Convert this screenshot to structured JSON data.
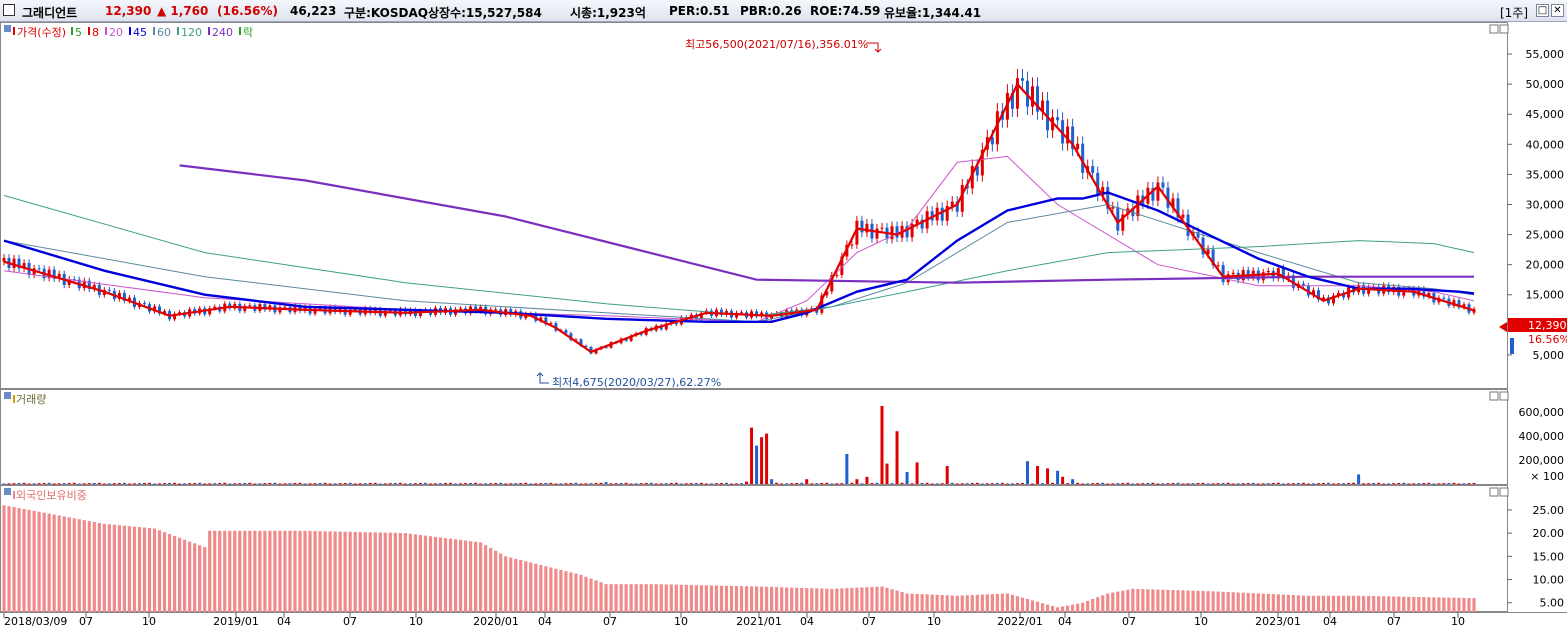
{
  "header": {
    "name": "그래디언트",
    "price": "12,390",
    "change": "▲ 1,760",
    "change_pct": "(16.56%)",
    "volume": "46,223",
    "market": "구분:KOSDAQ",
    "shares": "상장수:15,527,584",
    "mcap": "시총:1,923억",
    "per": "PER:0.51",
    "pbr": "PBR:0.26",
    "roe": "ROE:74.59",
    "reserve": "유보율:1,344.41",
    "period_btn": "[1주]",
    "btn1": "□",
    "btn2": "✕"
  },
  "colors": {
    "up": "#e00000",
    "down": "#1f5fd0",
    "ma5": "#2aa02a",
    "ma8": "#e00000",
    "ma20": "#cc55cc",
    "ma45": "#0000dd",
    "ma60": "#5a8aa0",
    "ma120": "#3fa08a",
    "ma240": "#7b2fbf",
    "foreign": "#f08a8a"
  },
  "price_legend": [
    {
      "label": "가격(수정)",
      "color": "#e00000"
    },
    {
      "label": "5",
      "color": "#2aa02a"
    },
    {
      "label": "8",
      "color": "#e00000"
    },
    {
      "label": "20",
      "color": "#cc55cc"
    },
    {
      "label": "45",
      "color": "#0000dd"
    },
    {
      "label": "60",
      "color": "#5a8aa0"
    },
    {
      "label": "120",
      "color": "#3fa08a"
    },
    {
      "label": "240",
      "color": "#7b2fbf"
    },
    {
      "label": "락",
      "color": "#2aa02a"
    }
  ],
  "volume_legend": "거래량",
  "foreign_legend": "외국인보유비중",
  "annotations": {
    "high": "최고56,500(2021/07/16),356.01%",
    "low": "최저4,675(2020/03/27),62.27%"
  },
  "current_price_label": "12,390",
  "current_pct_label": "16.56%",
  "chart_data": [
    {
      "type": "line",
      "title": "가격(수정)",
      "x_range": [
        "2018/03/09",
        "2023/11/17"
      ],
      "y_ticks": [
        "5,000",
        "10,000",
        "15,000",
        "20,000",
        "25,000",
        "30,000",
        "35,000",
        "40,000",
        "45,000",
        "50,000",
        "55,000"
      ],
      "ylim": [
        0,
        59000
      ],
      "series": [
        {
          "name": "가격(수정)",
          "x": [
            0,
            20,
            33,
            45,
            60,
            80,
            95,
            105,
            110,
            117,
            128,
            140,
            153,
            162,
            170,
            178,
            190,
            202,
            213,
            222,
            230,
            243,
            254,
            263,
            270,
            281,
            293
          ],
          "values": [
            20500,
            15500,
            11500,
            13000,
            12500,
            12000,
            12500,
            11500,
            9500,
            5500,
            9000,
            12000,
            11500,
            12500,
            26000,
            25000,
            30000,
            50000,
            40000,
            27000,
            33000,
            18000,
            18500,
            14000,
            16000,
            15500,
            12390
          ]
        },
        {
          "name": "45",
          "x": [
            0,
            20,
            40,
            60,
            80,
            100,
            120,
            140,
            153,
            160,
            170,
            180,
            190,
            200,
            210,
            215,
            220,
            230,
            240,
            250,
            260,
            270,
            280,
            290,
            293
          ],
          "values": [
            24000,
            19000,
            15000,
            13000,
            12500,
            12000,
            11000,
            10500,
            10500,
            12000,
            15500,
            17500,
            24000,
            29000,
            31000,
            31000,
            32000,
            29000,
            25000,
            21000,
            18000,
            16000,
            16000,
            15500,
            15200
          ]
        },
        {
          "name": "240",
          "x": [
            35,
            60,
            100,
            150,
            190,
            220,
            260,
            293
          ],
          "values": [
            36500,
            34000,
            28000,
            17500,
            17000,
            17500,
            18000,
            18000
          ]
        },
        {
          "name": "120",
          "x": [
            0,
            40,
            80,
            120,
            150,
            165,
            180,
            200,
            220,
            250,
            270,
            285,
            293
          ],
          "values": [
            31500,
            22000,
            17000,
            13500,
            11500,
            13000,
            15500,
            19000,
            22000,
            23000,
            24000,
            23500,
            22000
          ]
        },
        {
          "name": "60",
          "x": [
            0,
            40,
            80,
            120,
            150,
            165,
            180,
            200,
            220,
            250,
            270,
            285,
            293
          ],
          "values": [
            24000,
            18000,
            14000,
            12000,
            10500,
            13000,
            17000,
            27000,
            30000,
            22000,
            17000,
            16000,
            15000
          ]
        },
        {
          "name": "20",
          "x": [
            0,
            40,
            80,
            120,
            150,
            160,
            170,
            180,
            190,
            200,
            210,
            230,
            250,
            270,
            285,
            293
          ],
          "values": [
            19000,
            14500,
            12500,
            11500,
            10500,
            14000,
            22000,
            26000,
            37000,
            38000,
            30000,
            20000,
            16500,
            16500,
            15500,
            14000
          ]
        }
      ]
    },
    {
      "type": "bar",
      "title": "거래량",
      "y_ticks": [
        "× 100",
        "200,000",
        "400,000",
        "600,000"
      ],
      "ylim": [
        0,
        700000
      ],
      "x": [
        120,
        148,
        149,
        150,
        151,
        152,
        153,
        160,
        168,
        170,
        172,
        175,
        176,
        178,
        180,
        182,
        188,
        204,
        206,
        208,
        210,
        211,
        213,
        270
      ],
      "values": [
        15000,
        20000,
        470000,
        320000,
        390000,
        420000,
        40000,
        40000,
        250000,
        40000,
        60000,
        650000,
        170000,
        440000,
        100000,
        180000,
        150000,
        190000,
        150000,
        130000,
        110000,
        60000,
        40000,
        80000
      ]
    },
    {
      "type": "bar",
      "title": "외국인보유비중",
      "y_ticks": [
        "5.00",
        "10.00",
        "15.00",
        "20.00",
        "25.00"
      ],
      "ylim": [
        3,
        28
      ],
      "x": [
        0,
        20,
        30,
        40,
        41,
        60,
        80,
        95,
        100,
        115,
        120,
        130,
        150,
        165,
        175,
        180,
        190,
        200,
        205,
        210,
        215,
        220,
        225,
        240,
        260,
        270,
        293
      ],
      "values": [
        26,
        22,
        21,
        17,
        20.5,
        20.5,
        20,
        18,
        15,
        11,
        9,
        9,
        8.5,
        8,
        8.5,
        7,
        6.5,
        7,
        5.5,
        4,
        5,
        7,
        8,
        7.5,
        6.5,
        6.5,
        6
      ]
    }
  ],
  "x_axis": {
    "ticks": [
      "2018/03/09",
      "07",
      "10",
      "2019/01",
      "04",
      "07",
      "10",
      "2020/01",
      "04",
      "07",
      "10",
      "2021/01",
      "04",
      "07",
      "10",
      "2022/01",
      "04",
      "07",
      "10",
      "2023/01",
      "04",
      "07",
      "10"
    ]
  }
}
